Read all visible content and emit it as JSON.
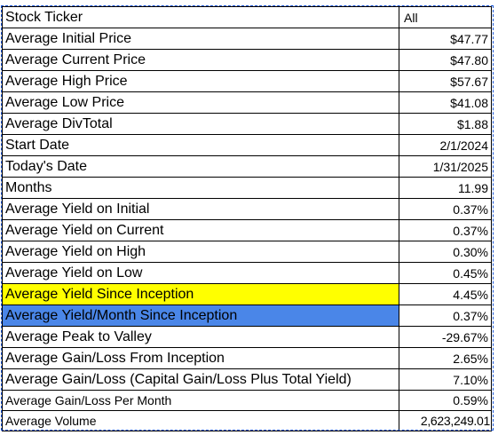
{
  "rows": [
    {
      "label": "Stock Ticker",
      "value": "All"
    },
    {
      "label": "Average Initial Price",
      "value": "$47.77"
    },
    {
      "label": "Average Current Price",
      "value": "$47.80"
    },
    {
      "label": "Average High Price",
      "value": "$57.67"
    },
    {
      "label": "Average Low Price",
      "value": "$41.08"
    },
    {
      "label": "Average DivTotal",
      "value": "$1.88"
    },
    {
      "label": "Start Date",
      "value": "2/1/2024"
    },
    {
      "label": "Today's Date",
      "value": "1/31/2025"
    },
    {
      "label": "Months",
      "value": "11.99"
    },
    {
      "label": "Average Yield on Initial",
      "value": "0.37%"
    },
    {
      "label": "Average Yield on Current",
      "value": "0.37%"
    },
    {
      "label": "Average Yield on High",
      "value": "0.30%"
    },
    {
      "label": "Average Yield on Low",
      "value": "0.45%"
    },
    {
      "label": "Average Yield Since Inception",
      "value": "4.45%"
    },
    {
      "label": "Average Yield/Month Since Inception",
      "value": "0.37%"
    },
    {
      "label": "Average Peak to Valley",
      "value": "-29.67%"
    },
    {
      "label": "Average Gain/Loss From Inception",
      "value": "2.65%"
    },
    {
      "label": "Average Gain/Loss (Capital Gain/Loss Plus Total Yield)",
      "value": "7.10%"
    },
    {
      "label": "Average Gain/Loss Per Month",
      "value": "0.59%"
    },
    {
      "label": "Average Volume",
      "value": "2,623,249.01"
    }
  ],
  "highlight_colors": {
    "yellow": "#ffff00",
    "blue": "#4a86e8"
  }
}
